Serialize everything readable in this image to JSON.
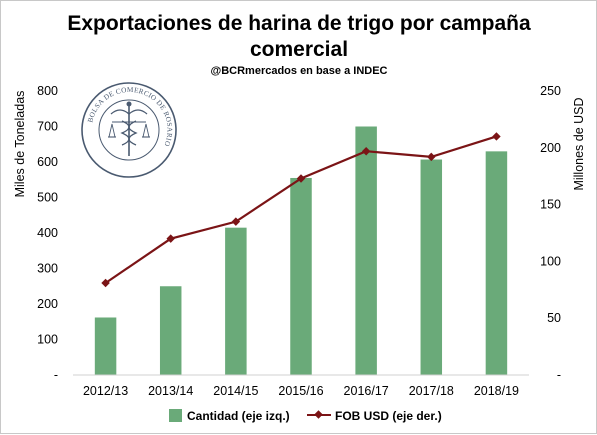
{
  "chart_data": {
    "type": "bar+line",
    "title_line1": "Exportaciones de harina de trigo por campaña",
    "title_line2": "comercial",
    "subtitle": "@BCRmercados en base a INDEC",
    "categories": [
      "2012/13",
      "2013/14",
      "2014/15",
      "2015/16",
      "2016/17",
      "2017/18",
      "2018/19"
    ],
    "series": [
      {
        "name": "Cantidad (eje izq.)",
        "type": "bar",
        "axis": "left",
        "color": "#6aaa79",
        "values": [
          162,
          250,
          415,
          555,
          700,
          607,
          630
        ]
      },
      {
        "name": "FOB USD (eje der.)",
        "type": "line",
        "axis": "right",
        "color": "#7b1416",
        "values": [
          81,
          120,
          135,
          173,
          197,
          192,
          210
        ]
      }
    ],
    "ylabel_left": "Miles de Toneladas",
    "ylabel_right": "Millones de USD",
    "ylim_left": [
      0,
      800
    ],
    "ylim_right": [
      0,
      250
    ],
    "yticks_left": [
      "-",
      "100",
      "200",
      "300",
      "400",
      "500",
      "600",
      "700",
      "800"
    ],
    "yticks_right": [
      "-",
      "50",
      "100",
      "150",
      "200",
      "250"
    ],
    "grid": false,
    "legend_position": "bottom"
  },
  "logo": {
    "text": "BOLSA DE COMERCIO DE ROSARIO"
  }
}
